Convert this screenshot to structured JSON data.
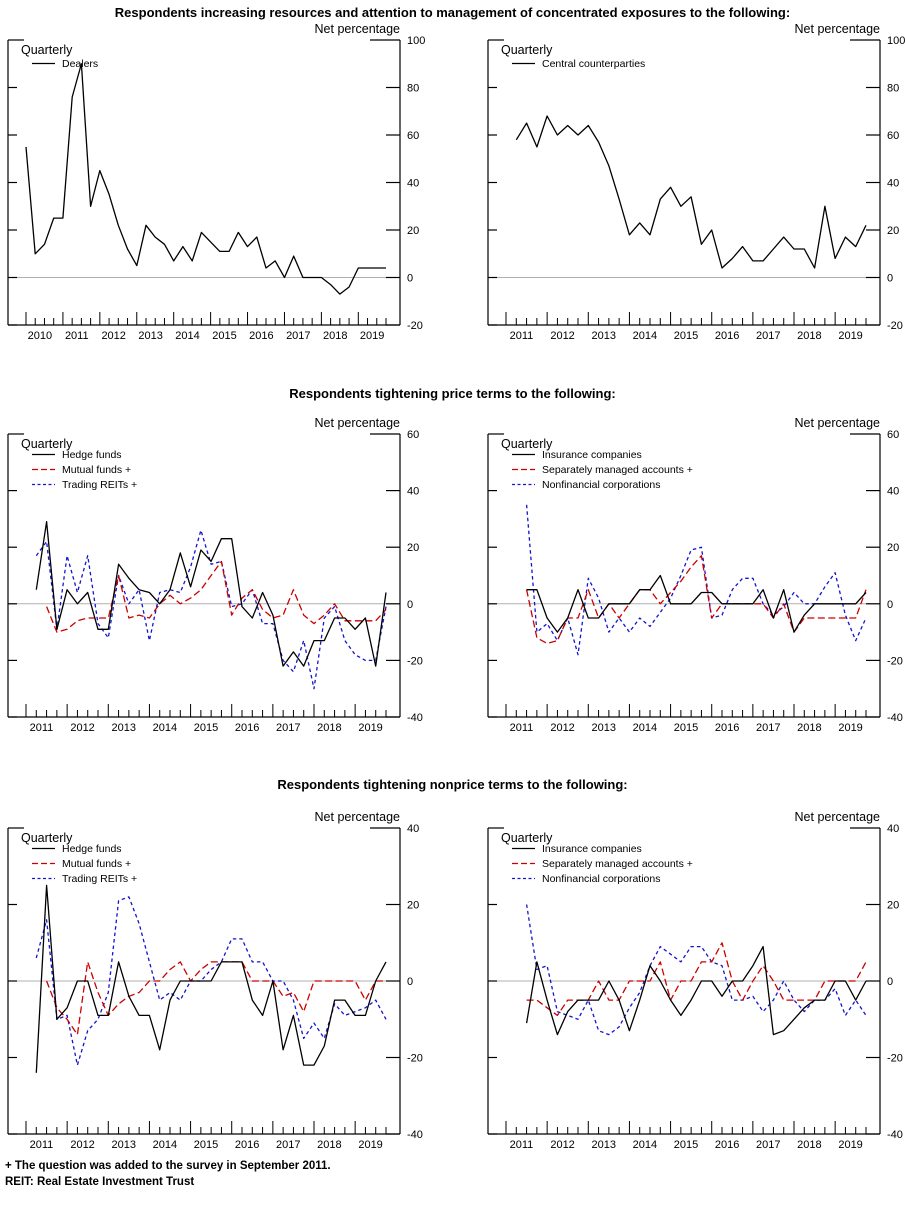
{
  "colors": {
    "black": "#000000",
    "red": "#cc0000",
    "blue": "#1414cc",
    "zero_line": "#b0b0b0"
  },
  "sections": [
    {
      "title": "Respondents increasing resources and attention to management of concentrated exposures to the following:"
    },
    {
      "title": "Respondents tightening price terms to the following:"
    },
    {
      "title": "Respondents tightening nonprice terms to the following:"
    }
  ],
  "footnotes": {
    "line1": "+ The question was added to the survey in September 2011.",
    "line2": "REIT: Real Estate Investment Trust"
  },
  "chart_data": [
    {
      "id": "dealers",
      "type": "line",
      "corner_label": "Quarterly",
      "y_axis_label": "Net percentage",
      "ylim": [
        -20,
        100
      ],
      "ystep": 20,
      "y_ticks": [
        100,
        80,
        60,
        40,
        20,
        0,
        -20
      ],
      "x_unit": "quarter",
      "x_tick_labels": [
        "2010",
        "2011",
        "2012",
        "2013",
        "2014",
        "2015",
        "2016",
        "2017",
        "2018",
        "2019"
      ],
      "grid": "zero-line-only",
      "legend_position": "top-left",
      "series": [
        {
          "name": "Dealers",
          "color_key": "black",
          "dash": "solid",
          "start_quarter_index": 0,
          "values": [
            55,
            10,
            14,
            25,
            25,
            76,
            90,
            30,
            45,
            35,
            22,
            12,
            5,
            22,
            17,
            14,
            7,
            13,
            7,
            19,
            15,
            11,
            11,
            19,
            13,
            17,
            4,
            7,
            0,
            9,
            0,
            0,
            0,
            -3,
            -7,
            -4,
            4,
            4,
            4,
            4
          ]
        }
      ]
    },
    {
      "id": "central-counterparties",
      "type": "line",
      "corner_label": "Quarterly",
      "y_axis_label": "Net percentage",
      "ylim": [
        -20,
        100
      ],
      "ystep": 20,
      "y_ticks": [
        100,
        80,
        60,
        40,
        20,
        0,
        -20
      ],
      "x_unit": "quarter",
      "x_tick_labels": [
        "2011",
        "2012",
        "2013",
        "2014",
        "2015",
        "2016",
        "2017",
        "2018",
        "2019"
      ],
      "grid": "zero-line-only",
      "legend_position": "top-left",
      "series": [
        {
          "name": "Central counterparties",
          "color_key": "black",
          "dash": "solid",
          "start_quarter_index": 1,
          "values": [
            58,
            65,
            55,
            68,
            60,
            64,
            60,
            64,
            57,
            47,
            33,
            18,
            23,
            18,
            33,
            38,
            30,
            34,
            14,
            20,
            4,
            8,
            13,
            7,
            7,
            12,
            17,
            12,
            12,
            4,
            30,
            8,
            17,
            13,
            22
          ]
        }
      ]
    },
    {
      "id": "price-terms-funds",
      "type": "line",
      "corner_label": "Quarterly",
      "y_axis_label": "Net percentage",
      "ylim": [
        -40,
        60
      ],
      "ystep": 20,
      "y_ticks": [
        60,
        40,
        20,
        0,
        -20,
        -40
      ],
      "x_unit": "quarter",
      "x_tick_labels": [
        "2011",
        "2012",
        "2013",
        "2014",
        "2015",
        "2016",
        "2017",
        "2018",
        "2019"
      ],
      "grid": "zero-line-only",
      "legend_position": "top-left",
      "series": [
        {
          "name": "Hedge funds",
          "color_key": "black",
          "dash": "solid",
          "start_quarter_index": 1,
          "values": [
            5,
            29,
            -9,
            5,
            0,
            4,
            -9,
            -9,
            14,
            9,
            5,
            4,
            0,
            5,
            18,
            6,
            19,
            15,
            23,
            23,
            -1,
            -5,
            4,
            -4,
            -22,
            -17,
            -22,
            -13,
            -13,
            -5,
            -5,
            -9,
            -5,
            -22,
            4
          ]
        },
        {
          "name": "Mutual funds +",
          "color_key": "red",
          "dash": "dash-long",
          "start_quarter_index": 2,
          "values": [
            -1,
            -10,
            -9,
            -6,
            -5,
            -5,
            -5,
            10,
            -5,
            -4,
            -5,
            0,
            3,
            0,
            2,
            5,
            10,
            15,
            -4,
            2,
            5,
            -2,
            -5,
            -4,
            5,
            -4,
            -7,
            -4,
            0,
            -6,
            -6,
            -6,
            -6,
            -2
          ]
        },
        {
          "name": "Trading REITs +",
          "color_key": "blue",
          "dash": "dash-short",
          "start_quarter_index": 1,
          "values": [
            17,
            22,
            -9,
            17,
            4,
            17,
            -7,
            -12,
            10,
            0,
            5,
            -13,
            4,
            5,
            4,
            13,
            26,
            14,
            15,
            -1,
            0,
            5,
            -7,
            -7,
            -20,
            -24,
            -13,
            -30,
            -5,
            -1,
            -13,
            -18,
            -20,
            -20,
            -1
          ]
        }
      ]
    },
    {
      "id": "price-terms-companies",
      "type": "line",
      "corner_label": "Quarterly",
      "y_axis_label": "Net percentage",
      "ylim": [
        -40,
        60
      ],
      "ystep": 20,
      "y_ticks": [
        60,
        40,
        20,
        0,
        -20,
        -40
      ],
      "x_unit": "quarter",
      "x_tick_labels": [
        "2011",
        "2012",
        "2013",
        "2014",
        "2015",
        "2016",
        "2017",
        "2018",
        "2019"
      ],
      "grid": "zero-line-only",
      "legend_position": "top-left",
      "series": [
        {
          "name": "Insurance companies",
          "color_key": "black",
          "dash": "solid",
          "start_quarter_index": 2,
          "values": [
            5,
            5,
            -5,
            -10,
            -5,
            5,
            -5,
            -5,
            0,
            0,
            0,
            5,
            5,
            10,
            0,
            0,
            0,
            4,
            4,
            0,
            0,
            0,
            0,
            5,
            -5,
            5,
            -10,
            -4,
            0,
            0,
            0,
            0,
            0,
            4
          ]
        },
        {
          "name": "Separately managed accounts +",
          "color_key": "red",
          "dash": "dash-long",
          "start_quarter_index": 2,
          "values": [
            5,
            -12,
            -14,
            -13,
            -5,
            -5,
            5,
            -5,
            0,
            -5,
            0,
            5,
            5,
            0,
            4,
            8,
            13,
            17,
            -5,
            0,
            0,
            0,
            0,
            0,
            -5,
            0,
            -10,
            -5,
            -5,
            -5,
            -5,
            -5,
            -5,
            5
          ]
        },
        {
          "name": "Nonfinancial corporations",
          "color_key": "blue",
          "dash": "dash-short",
          "start_quarter_index": 2,
          "values": [
            35,
            -10,
            -7,
            -13,
            -5,
            -18,
            9,
            2,
            -10,
            -5,
            -10,
            -5,
            -8,
            -3,
            2,
            10,
            19,
            20,
            -5,
            -4,
            5,
            9,
            9,
            0,
            -4,
            -1,
            4,
            0,
            0,
            6,
            11,
            -4,
            -13,
            -5
          ]
        }
      ]
    },
    {
      "id": "nonprice-terms-funds",
      "type": "line",
      "corner_label": "Quarterly",
      "y_axis_label": "Net percentage",
      "ylim": [
        -40,
        40
      ],
      "ystep": 20,
      "y_ticks": [
        40,
        20,
        0,
        -20,
        -40
      ],
      "x_unit": "quarter",
      "x_tick_labels": [
        "2011",
        "2012",
        "2013",
        "2014",
        "2015",
        "2016",
        "2017",
        "2018",
        "2019"
      ],
      "grid": "zero-line-only",
      "legend_position": "top-left",
      "series": [
        {
          "name": "Hedge funds",
          "color_key": "black",
          "dash": "solid",
          "start_quarter_index": 1,
          "values": [
            -24,
            25,
            -10,
            -7,
            0,
            0,
            -9,
            -9,
            5,
            -4,
            -9,
            -9,
            -18,
            -5,
            0,
            0,
            0,
            0,
            5,
            5,
            5,
            -5,
            -9,
            0,
            -18,
            -9,
            -22,
            -22,
            -17,
            -5,
            -5,
            -9,
            -9,
            0,
            5
          ]
        },
        {
          "name": "Mutual funds +",
          "color_key": "red",
          "dash": "dash-long",
          "start_quarter_index": 2,
          "values": [
            0,
            -7,
            -10,
            -14,
            5,
            -3,
            -9,
            -6,
            -4,
            -3,
            0,
            0,
            3,
            5,
            0,
            3,
            5,
            5,
            5,
            5,
            0,
            0,
            0,
            -4,
            -3,
            -8,
            0,
            0,
            0,
            0,
            0,
            -5,
            0,
            0
          ]
        },
        {
          "name": "Trading REITs +",
          "color_key": "blue",
          "dash": "dash-short",
          "start_quarter_index": 1,
          "values": [
            6,
            16,
            -10,
            -9,
            -22,
            -13,
            -10,
            -3,
            21,
            22,
            15,
            5,
            -5,
            -3,
            -5,
            0,
            0,
            3,
            5,
            11,
            11,
            5,
            5,
            0,
            0,
            -5,
            -15,
            -11,
            -15,
            -6,
            -9,
            -8,
            -7,
            -5,
            -10
          ]
        }
      ]
    },
    {
      "id": "nonprice-terms-companies",
      "type": "line",
      "corner_label": "Quarterly",
      "y_axis_label": "Net percentage",
      "ylim": [
        -40,
        40
      ],
      "ystep": 20,
      "y_ticks": [
        40,
        20,
        0,
        -20,
        -40
      ],
      "x_unit": "quarter",
      "x_tick_labels": [
        "2011",
        "2012",
        "2013",
        "2014",
        "2015",
        "2016",
        "2017",
        "2018",
        "2019"
      ],
      "grid": "zero-line-only",
      "legend_position": "top-left",
      "series": [
        {
          "name": "Insurance companies",
          "color_key": "black",
          "dash": "solid",
          "start_quarter_index": 2,
          "values": [
            -11,
            5,
            -5,
            -14,
            -8,
            -5,
            -5,
            -5,
            0,
            -5,
            -13,
            -5,
            4,
            0,
            -5,
            -9,
            -5,
            0,
            0,
            -4,
            0,
            0,
            4,
            9,
            -14,
            -13,
            -10,
            -7,
            -5,
            -5,
            0,
            0,
            -5,
            0
          ]
        },
        {
          "name": "Separately managed accounts +",
          "color_key": "red",
          "dash": "dash-long",
          "start_quarter_index": 2,
          "values": [
            -5,
            -5,
            -7,
            -9,
            -5,
            -5,
            -5,
            0,
            -5,
            -5,
            0,
            0,
            0,
            5,
            -5,
            0,
            0,
            5,
            5,
            10,
            0,
            -5,
            0,
            4,
            0,
            -5,
            -5,
            -5,
            -5,
            0,
            0,
            0,
            0,
            5
          ]
        },
        {
          "name": "Nonfinancial corporations",
          "color_key": "blue",
          "dash": "dash-short",
          "start_quarter_index": 2,
          "values": [
            20,
            3,
            4,
            -8,
            -9,
            -10,
            -5,
            -13,
            -14,
            -12,
            -7,
            -3,
            4,
            9,
            7,
            5,
            9,
            9,
            5,
            4,
            -5,
            -5,
            -4,
            -8,
            -5,
            0,
            -5,
            -8,
            -5,
            -5,
            -2,
            -9,
            -5,
            -9
          ]
        }
      ]
    }
  ]
}
